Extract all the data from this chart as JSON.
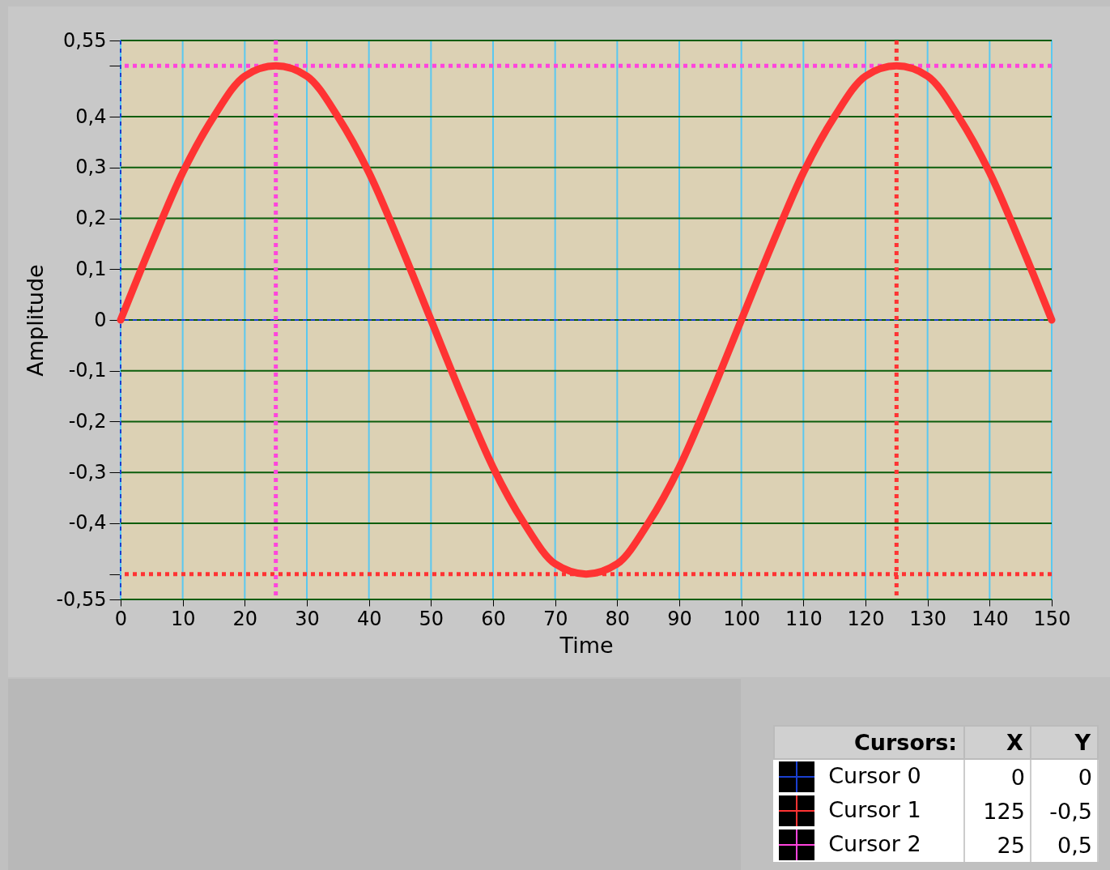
{
  "chart_data": {
    "type": "line",
    "xlabel": "Time",
    "ylabel": "Amplitude",
    "x": [
      0,
      5,
      10,
      15,
      20,
      25,
      30,
      35,
      40,
      45,
      50,
      55,
      60,
      65,
      70,
      75,
      80,
      85,
      90,
      95,
      100,
      105,
      110,
      115,
      120,
      125,
      130,
      135,
      140,
      145,
      150
    ],
    "series": [
      {
        "color": "#ff3333",
        "values": [
          0,
          0.15,
          0.29,
          0.4,
          0.48,
          0.5,
          0.48,
          0.4,
          0.29,
          0.15,
          0,
          -0.15,
          -0.29,
          -0.4,
          -0.48,
          -0.5,
          -0.48,
          -0.4,
          -0.29,
          -0.15,
          0,
          0.15,
          0.29,
          0.4,
          0.48,
          0.5,
          0.48,
          0.4,
          0.29,
          0.15,
          0
        ]
      }
    ],
    "xlim": [
      0,
      150
    ],
    "xticks": [
      0,
      10,
      20,
      30,
      40,
      50,
      60,
      70,
      80,
      90,
      100,
      110,
      120,
      130,
      140,
      150
    ],
    "ylim": [
      -0.55,
      0.55
    ],
    "yticks": [
      {
        "value": -0.55,
        "label": "-0,55"
      },
      {
        "value": -0.5,
        "label": null
      },
      {
        "value": -0.4,
        "label": "-0,4"
      },
      {
        "value": -0.3,
        "label": "-0,3"
      },
      {
        "value": -0.2,
        "label": "-0,2"
      },
      {
        "value": -0.1,
        "label": "-0,1"
      },
      0,
      {
        "value": 0.1,
        "label": "0,1"
      },
      {
        "value": 0.2,
        "label": "0,2"
      },
      {
        "value": 0.3,
        "label": "0,3"
      },
      {
        "value": 0.4,
        "label": "0,4"
      },
      {
        "value": 0.5,
        "label": null
      },
      {
        "value": 0.55,
        "label": "0,55"
      }
    ],
    "grid": true,
    "line_style": "solid",
    "legend": "bottom right",
    "ref_lines": [
      {
        "axis": "x",
        "value": 0,
        "label": "Cursor 0",
        "color": "#1a3fd0",
        "line_style": "dotted"
      },
      {
        "axis": "y",
        "value": 0,
        "color": "#1a3fd0",
        "line_style": "dotted"
      },
      {
        "axis": "x",
        "value": 125,
        "label": "Cursor 1",
        "color": "#ff3333",
        "line_style": "dotted"
      },
      {
        "axis": "y",
        "value": -0.5,
        "color": "#ff3333",
        "line_style": "dotted"
      },
      {
        "axis": "x",
        "value": 25,
        "label": "Cursor 2",
        "color": "#ff44dd",
        "line_style": "dotted"
      },
      {
        "axis": "y",
        "value": 0.5,
        "color": "#ff44dd",
        "line_style": "dotted"
      }
    ],
    "annotations": [
      "Cursors:",
      "X",
      "Y",
      "0",
      "0",
      "125",
      "-0,5",
      "25",
      "0,5"
    ]
  }
}
